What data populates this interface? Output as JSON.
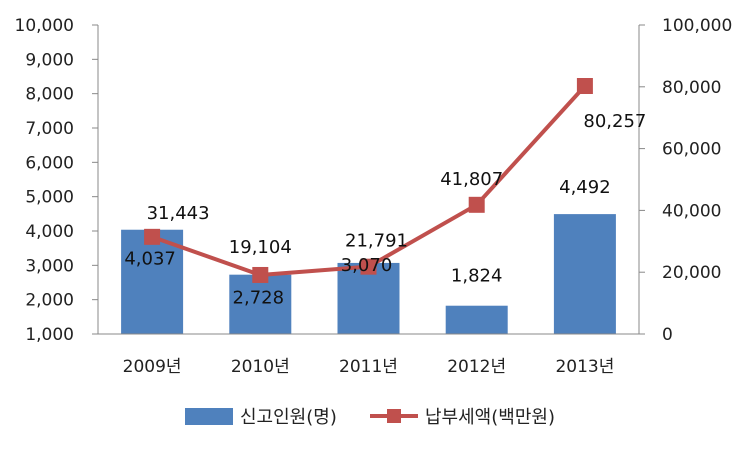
{
  "chart_data": {
    "type": "bar",
    "categories": [
      "2009년",
      "2010년",
      "2011년",
      "2012년",
      "2013년"
    ],
    "series": [
      {
        "name": "신고인원(명)",
        "type": "bar",
        "axis": "left",
        "color": "#4f81bd",
        "values": [
          4037,
          2728,
          3070,
          1824,
          4492
        ],
        "labels": [
          "4,037",
          "2,728",
          "3,070",
          "1,824",
          "4,492"
        ]
      },
      {
        "name": "납부세액(백만원)",
        "type": "line",
        "axis": "right",
        "color": "#c0504d",
        "marker": "square",
        "values": [
          31443,
          19104,
          21791,
          41807,
          80257
        ],
        "labels": [
          "31,443",
          "19,104",
          "21,791",
          "41,807",
          "80,257"
        ]
      }
    ],
    "y_left": {
      "min": 1000,
      "max": 10000,
      "step": 1000,
      "ticks": [
        "1,000",
        "2,000",
        "3,000",
        "4,000",
        "5,000",
        "6,000",
        "7,000",
        "8,000",
        "9,000",
        "10,000"
      ]
    },
    "y_right": {
      "min": 0,
      "max": 100000,
      "step": 20000,
      "ticks": [
        "0",
        "20,000",
        "40,000",
        "60,000",
        "80,000",
        "100,000"
      ]
    },
    "grid": false,
    "legend_position": "bottom"
  }
}
